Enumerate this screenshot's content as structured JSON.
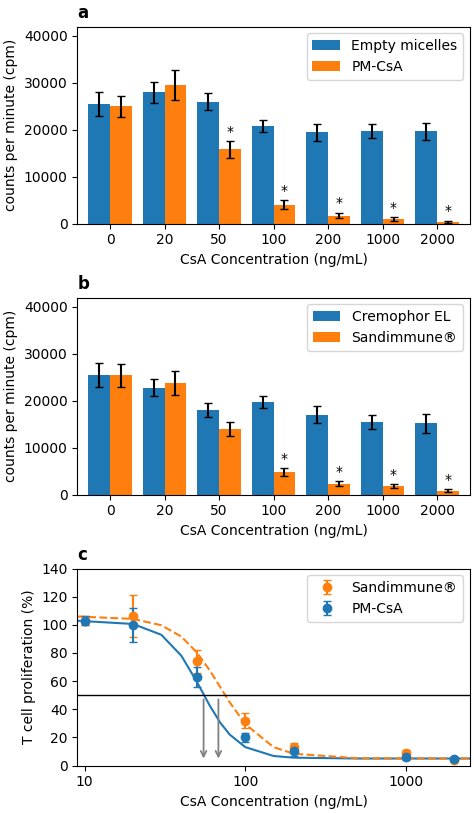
{
  "chart_data": [
    {
      "type": "bar",
      "title": "a",
      "x_label": "CsA Concentration (ng/mL)",
      "y_label": "counts per minute (cpm)",
      "categories": [
        "0",
        "20",
        "50",
        "100",
        "200",
        "1000",
        "2000"
      ],
      "series": [
        {
          "name": "Empty micelles",
          "color": "#1f77b4",
          "values": [
            25500,
            28000,
            26000,
            20800,
            19500,
            19700,
            19700
          ],
          "errors": [
            2500,
            2200,
            1800,
            1200,
            1800,
            1500,
            1800
          ]
        },
        {
          "name": "PM-CsA",
          "color": "#ff7f0e",
          "values": [
            25000,
            29500,
            15800,
            4000,
            1700,
            900,
            400
          ],
          "errors": [
            2200,
            3200,
            1800,
            1000,
            600,
            400,
            200
          ],
          "annotations": [
            {
              "text": "*",
              "index": 2
            },
            {
              "text": "*",
              "index": 3
            },
            {
              "text": "*",
              "index": 4
            },
            {
              "text": "*",
              "index": 5
            },
            {
              "text": "*",
              "index": 6
            }
          ]
        }
      ],
      "ylim": [
        0,
        42000
      ],
      "yticks": [
        0,
        10000,
        20000,
        30000,
        40000
      ],
      "legend": "upper right"
    },
    {
      "type": "bar",
      "title": "b",
      "x_label": "CsA Concentration (ng/mL)",
      "y_label": "counts per minute (cpm)",
      "categories": [
        "0",
        "20",
        "50",
        "100",
        "200",
        "1000",
        "2000"
      ],
      "series": [
        {
          "name": "Cremophor EL",
          "color": "#1f77b4",
          "values": [
            25500,
            22800,
            18000,
            19700,
            17000,
            15500,
            15200
          ],
          "errors": [
            2500,
            1800,
            1500,
            1200,
            1800,
            1500,
            2000
          ]
        },
        {
          "name": "Sandimmune®",
          "color": "#ff7f0e",
          "values": [
            25400,
            23800,
            14000,
            4800,
            2300,
            1800,
            800
          ],
          "errors": [
            2500,
            2500,
            1500,
            800,
            500,
            400,
            300
          ],
          "annotations": [
            {
              "text": "*",
              "index": 3
            },
            {
              "text": "*",
              "index": 4
            },
            {
              "text": "*",
              "index": 5
            },
            {
              "text": "*",
              "index": 6
            }
          ]
        }
      ],
      "ylim": [
        0,
        42000
      ],
      "yticks": [
        0,
        10000,
        20000,
        30000,
        40000
      ],
      "legend": "upper right"
    },
    {
      "type": "scatter",
      "title": "c",
      "x_label": "CsA Concentration (ng/mL)",
      "y_label": "T cell proliferation (%)",
      "log": "x",
      "series": [
        {
          "type": "line",
          "color": "#1f77b4",
          "line_style": "solid",
          "x": [
            9,
            20,
            30,
            40,
            50,
            60,
            70,
            80,
            100,
            150,
            200,
            500,
            2500
          ],
          "values": [
            102.9,
            100.6,
            92.9,
            78.0,
            59.4,
            42.7,
            30.3,
            22.0,
            13.1,
            6.8,
            5.6,
            5.0,
            5.0
          ]
        },
        {
          "type": "line",
          "color": "#ff7f0e",
          "line_style": "dashed",
          "x": [
            9,
            20,
            30,
            40,
            50,
            60,
            70,
            80,
            100,
            150,
            200,
            500,
            2500
          ],
          "values": [
            105.9,
            104.2,
            99.7,
            91.6,
            80.3,
            67.7,
            55.5,
            44.9,
            29.4,
            13.1,
            8.4,
            5.2,
            5.0
          ]
        },
        {
          "type": "scatter",
          "name": "Sandimmune®",
          "color": "#ff7f0e",
          "marker": "circle",
          "x": [
            10,
            20,
            50,
            100,
            200,
            1000,
            2000
          ],
          "values": [
            103,
            106,
            74,
            32,
            13,
            9,
            4
          ],
          "errors": [
            3,
            15,
            8,
            5,
            3,
            2,
            1
          ]
        },
        {
          "type": "scatter",
          "name": "PM-CsA",
          "color": "#1f77b4",
          "marker": "circle",
          "x": [
            10,
            20,
            50,
            100,
            200,
            1000,
            2000
          ],
          "values": [
            103,
            100,
            63,
            20,
            10,
            6,
            5
          ],
          "errors": [
            3,
            12,
            7,
            3,
            3,
            2,
            1
          ]
        }
      ],
      "hlines": [
        50
      ],
      "arrows": [
        {
          "x": 55,
          "y_start": 49,
          "y_end": 3
        },
        {
          "x": 68,
          "y_start": 49,
          "y_end": 3
        }
      ],
      "xlim": [
        9,
        2500
      ],
      "xticks": [
        10,
        100,
        1000
      ],
      "ylim": [
        0,
        140
      ],
      "yticks": [
        0,
        20,
        40,
        60,
        80,
        100,
        120,
        140
      ],
      "legend": "upper right"
    }
  ]
}
